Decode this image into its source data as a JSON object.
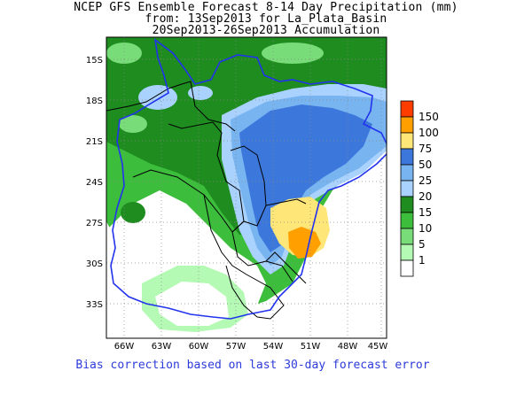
{
  "header": {
    "line1": "NCEP GFS Ensemble Forecast 8-14 Day Precipitation (mm)",
    "line2": "from: 13Sep2013   for La_Plata_Basin",
    "line3": "20Sep2013-26Sep2013 Accumulation"
  },
  "axes": {
    "lat_ticks": [
      "15S",
      "18S",
      "21S",
      "24S",
      "27S",
      "30S",
      "33S"
    ],
    "lon_ticks": [
      "66W",
      "63W",
      "60W",
      "57W",
      "54W",
      "51W",
      "48W",
      "45W"
    ]
  },
  "legend": {
    "levels": [
      "150",
      "100",
      "75",
      "50",
      "25",
      "20",
      "15",
      "10",
      "5",
      "1"
    ],
    "colors": [
      "#ff3c00",
      "#ffa000",
      "#ffe678",
      "#3c78dc",
      "#78b4f0",
      "#aad2ff",
      "#1e8c1e",
      "#3cbe3c",
      "#78dc78",
      "#b4fab4",
      "#ffffff"
    ]
  },
  "colors": {
    "basin_outline": "#2233ee",
    "borders": "#000000",
    "footer_text": "#2d3bd9"
  },
  "footer": {
    "text": "Bias correction based on last 30-day forecast error"
  }
}
